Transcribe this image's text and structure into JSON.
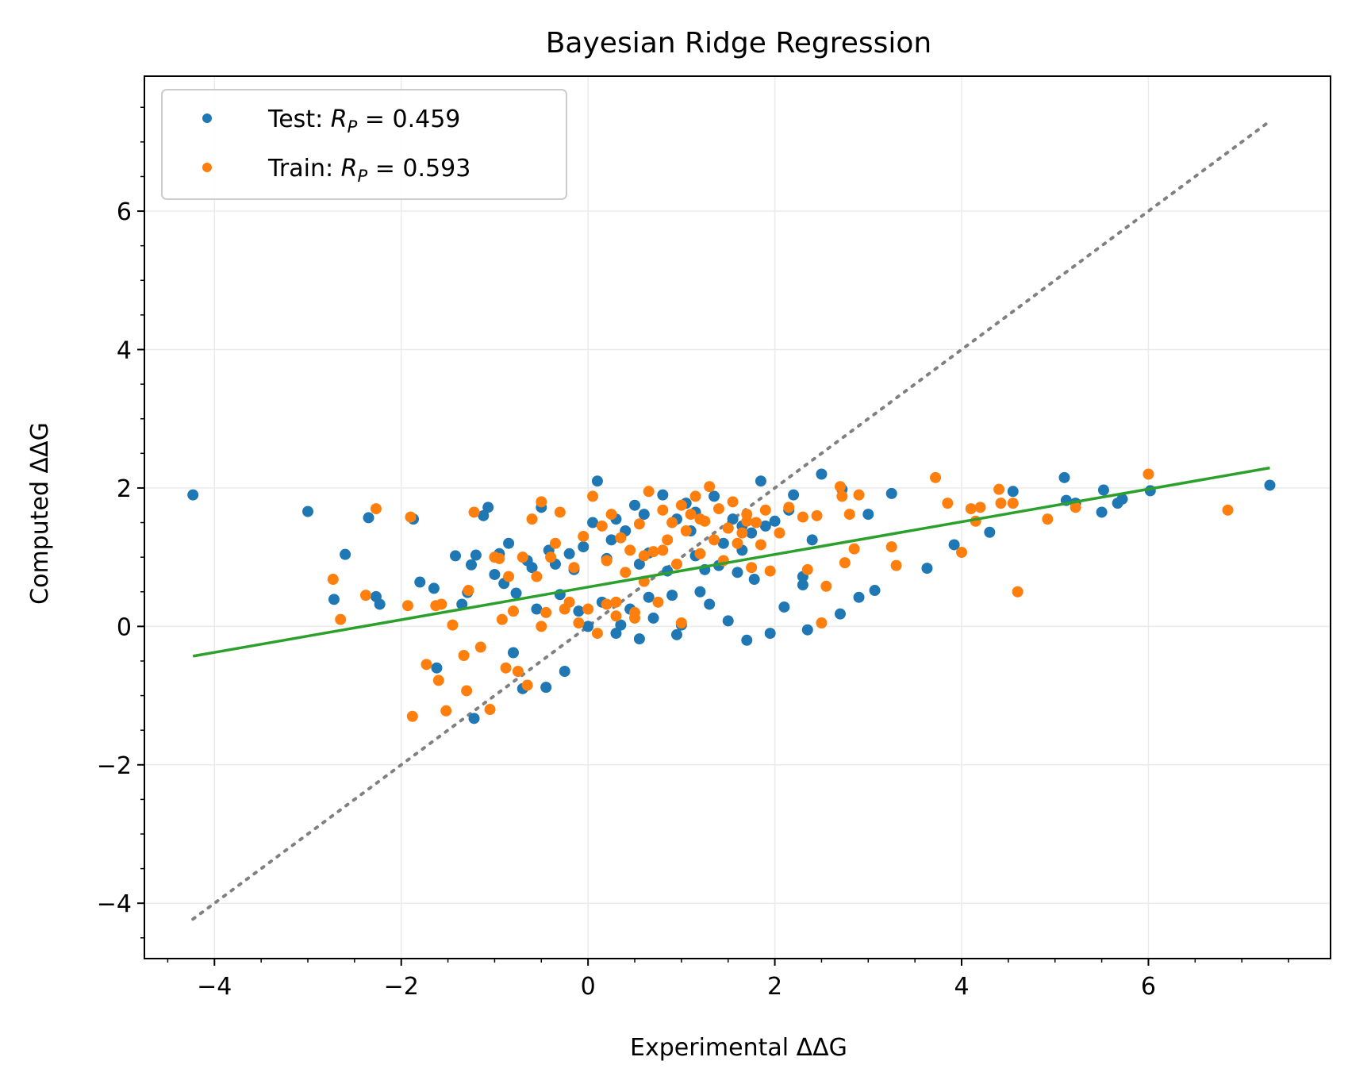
{
  "chart_data": {
    "type": "scatter",
    "title": "Bayesian Ridge Regression",
    "xlabel": "Experimental ΔΔG",
    "ylabel": "Computed ΔΔG",
    "xlim": [
      -4.75,
      7.95
    ],
    "ylim": [
      -4.8,
      7.95
    ],
    "xticks": [
      -4,
      -2,
      0,
      2,
      4,
      6
    ],
    "yticks": [
      -4,
      -2,
      0,
      2,
      4,
      6
    ],
    "xtick_labels": [
      "−4",
      "−2",
      "0",
      "2",
      "4",
      "6"
    ],
    "ytick_labels": [
      "−4",
      "−2",
      "0",
      "2",
      "4",
      "6"
    ],
    "grid": true,
    "legend_position": "top-left",
    "series": [
      {
        "name": "Test",
        "legend_prefix": "Test: ",
        "legend_value": "0.459",
        "color": "#1f77b4",
        "x": [
          -4.23,
          -3.0,
          -2.72,
          -2.6,
          -2.35,
          -2.27,
          -2.23,
          -1.87,
          -1.8,
          -1.65,
          -1.62,
          -1.42,
          -1.35,
          -1.29,
          -1.25,
          -1.22,
          -1.2,
          -1.12,
          -1.07,
          -1.0,
          -0.95,
          -0.9,
          -0.85,
          -0.8,
          -0.77,
          -0.7,
          -0.65,
          -0.55,
          -0.5,
          -0.45,
          -0.42,
          -0.3,
          -0.25,
          -0.2,
          -0.15,
          -0.1,
          -0.05,
          0.0,
          0.05,
          0.1,
          0.15,
          0.2,
          0.25,
          0.3,
          0.35,
          0.4,
          0.45,
          0.5,
          0.55,
          0.6,
          0.65,
          0.7,
          0.8,
          0.85,
          0.9,
          0.95,
          1.0,
          1.05,
          1.1,
          1.15,
          1.2,
          1.3,
          1.35,
          1.4,
          1.45,
          1.5,
          1.55,
          1.6,
          1.65,
          1.7,
          1.75,
          1.78,
          1.85,
          1.9,
          1.95,
          2.0,
          2.1,
          2.15,
          2.2,
          2.3,
          2.35,
          2.4,
          2.5,
          2.7,
          2.72,
          2.9,
          3.0,
          3.07,
          3.25,
          3.63,
          3.92,
          4.3,
          4.55,
          5.1,
          5.12,
          5.22,
          5.5,
          5.52,
          5.67,
          5.72,
          6.02,
          7.3,
          0.55,
          0.95,
          1.25,
          -0.35,
          0.65,
          1.65,
          1.15,
          0.3,
          -0.6,
          2.3
        ],
        "y": [
          1.9,
          1.66,
          0.39,
          1.04,
          1.57,
          0.43,
          0.32,
          1.55,
          0.64,
          0.55,
          -0.6,
          1.02,
          0.32,
          0.49,
          0.89,
          -1.33,
          1.03,
          1.6,
          1.72,
          0.75,
          1.05,
          0.62,
          1.2,
          -0.38,
          0.48,
          -0.9,
          0.95,
          0.25,
          1.72,
          -0.88,
          1.1,
          0.46,
          -0.65,
          1.05,
          0.82,
          0.22,
          1.15,
          0.0,
          1.5,
          2.1,
          0.35,
          0.98,
          1.25,
          1.55,
          0.02,
          1.38,
          0.25,
          1.75,
          0.9,
          1.62,
          0.42,
          0.12,
          1.9,
          0.8,
          0.45,
          1.55,
          0.02,
          1.78,
          1.38,
          1.65,
          0.5,
          0.32,
          1.88,
          0.88,
          1.2,
          0.08,
          1.55,
          0.78,
          1.1,
          -0.2,
          1.35,
          0.68,
          2.1,
          1.45,
          -0.1,
          1.52,
          0.28,
          1.68,
          1.9,
          0.72,
          -0.05,
          1.25,
          2.2,
          0.18,
          1.98,
          0.42,
          1.62,
          0.52,
          1.92,
          0.84,
          1.18,
          1.36,
          1.95,
          2.15,
          1.82,
          1.78,
          1.65,
          1.97,
          1.78,
          1.84,
          1.96,
          2.04,
          -0.18,
          -0.12,
          0.82,
          0.9,
          1.06,
          1.45,
          1.02,
          -0.1,
          0.85,
          0.6
        ]
      },
      {
        "name": "Train",
        "legend_prefix": "Train: ",
        "legend_value": "0.593",
        "color": "#ff7f0e",
        "x": [
          -2.73,
          -2.65,
          -2.38,
          -2.27,
          -1.93,
          -1.9,
          -1.88,
          -1.73,
          -1.63,
          -1.6,
          -1.57,
          -1.52,
          -1.45,
          -1.33,
          -1.3,
          -1.28,
          -1.22,
          -1.15,
          -1.05,
          -1.0,
          -0.95,
          -0.92,
          -0.88,
          -0.85,
          -0.8,
          -0.75,
          -0.7,
          -0.65,
          -0.6,
          -0.55,
          -0.5,
          -0.45,
          -0.4,
          -0.35,
          -0.3,
          -0.25,
          -0.2,
          -0.15,
          -0.1,
          -0.05,
          0.0,
          0.05,
          0.1,
          0.15,
          0.2,
          0.25,
          0.3,
          0.35,
          0.4,
          0.45,
          0.5,
          0.55,
          0.6,
          0.65,
          0.7,
          0.75,
          0.8,
          0.85,
          0.9,
          0.95,
          1.0,
          1.05,
          1.1,
          1.15,
          1.2,
          1.25,
          1.3,
          1.35,
          1.4,
          1.45,
          1.5,
          1.55,
          1.6,
          1.65,
          1.7,
          1.75,
          1.8,
          1.85,
          1.9,
          1.95,
          2.05,
          2.15,
          2.3,
          2.35,
          2.45,
          2.5,
          2.55,
          2.7,
          2.72,
          2.75,
          2.8,
          2.85,
          2.9,
          3.25,
          3.3,
          3.72,
          3.85,
          4.0,
          4.1,
          4.15,
          4.2,
          4.4,
          4.42,
          4.55,
          4.6,
          4.92,
          5.22,
          6.0,
          6.85,
          0.5,
          1.0,
          1.5,
          0.2,
          0.8,
          1.2,
          -0.5,
          0.3,
          1.7,
          0.6
        ],
        "y": [
          0.68,
          0.1,
          0.45,
          1.7,
          0.3,
          1.58,
          -1.3,
          -0.55,
          0.3,
          -0.78,
          0.32,
          -1.22,
          0.02,
          -0.42,
          -0.93,
          0.52,
          1.65,
          -0.3,
          -1.2,
          1.0,
          0.98,
          0.1,
          -0.6,
          0.72,
          0.22,
          -0.65,
          1.0,
          -0.85,
          1.55,
          0.72,
          1.8,
          0.2,
          1.0,
          1.2,
          1.65,
          0.25,
          0.35,
          0.85,
          0.05,
          1.3,
          0.25,
          1.88,
          -0.1,
          1.45,
          0.32,
          1.62,
          0.15,
          1.28,
          0.78,
          1.1,
          0.12,
          1.48,
          0.65,
          1.95,
          1.08,
          0.35,
          1.68,
          1.25,
          1.5,
          0.9,
          1.75,
          1.38,
          1.62,
          1.88,
          1.05,
          1.52,
          2.02,
          1.25,
          1.7,
          0.95,
          1.42,
          1.8,
          1.2,
          1.35,
          1.62,
          0.85,
          1.5,
          1.18,
          1.68,
          0.8,
          1.35,
          1.72,
          1.58,
          0.82,
          1.6,
          0.05,
          0.58,
          2.02,
          1.88,
          0.92,
          1.62,
          1.12,
          1.9,
          1.15,
          0.88,
          2.15,
          1.78,
          1.07,
          1.7,
          1.52,
          1.72,
          1.98,
          1.78,
          1.78,
          0.5,
          1.55,
          1.72,
          2.2,
          1.68,
          0.2,
          0.05,
          1.42,
          0.95,
          1.1,
          1.55,
          0.0,
          0.35,
          1.52,
          1.02
        ]
      },
      {
        "name": "",
        "type": "line",
        "color": "#2ca02c",
        "x": [
          -4.23,
          7.3
        ],
        "y": [
          -0.43,
          2.29
        ]
      },
      {
        "name": "",
        "type": "line",
        "style": "dotted",
        "color": "#808080",
        "x": [
          -4.23,
          7.3
        ],
        "y": [
          -4.23,
          7.3
        ]
      }
    ]
  }
}
